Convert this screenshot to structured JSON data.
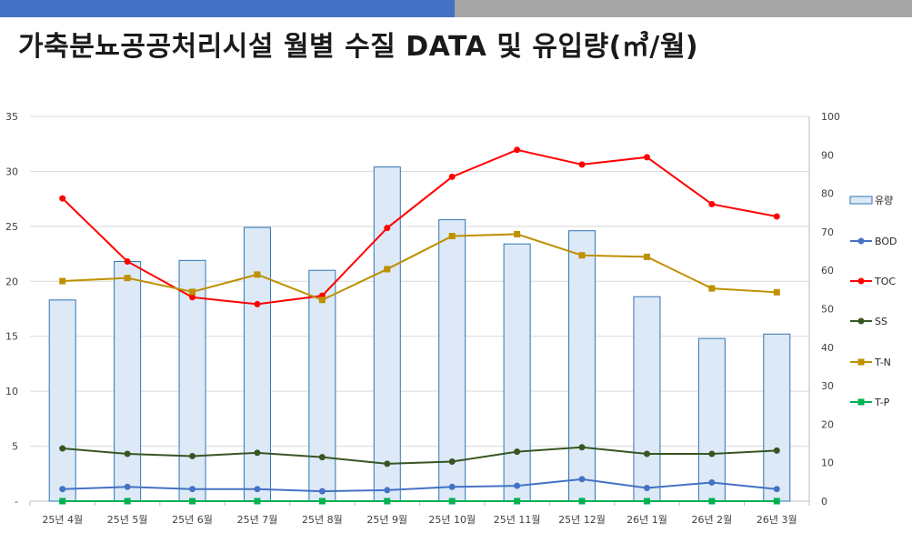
{
  "page": {
    "title": "가축분뇨공공처리시설 월별 수질 DATA 및 유입량(㎥/월)",
    "colors": {
      "bar_blue": "#4472c4",
      "bar_gray": "#a6a6a6"
    }
  },
  "chart_data": {
    "type": "bar",
    "categories": [
      "25년 4월",
      "25년 5월",
      "25년 6월",
      "25년 7월",
      "25년 8월",
      "25년 9월",
      "25년 10월",
      "25년 11월",
      "25년 12월",
      "26년 1월",
      "26년 2월",
      "26년 3월"
    ],
    "y_left": {
      "min": 0,
      "max": 35,
      "ticks": [
        "-",
        "5",
        "10",
        "15",
        "20",
        "25",
        "30",
        "35"
      ],
      "tick_values": [
        0,
        5,
        10,
        15,
        20,
        25,
        30,
        35
      ]
    },
    "y_right": {
      "min": 0,
      "max": 100,
      "ticks": [
        "0",
        "10",
        "20",
        "30",
        "40",
        "50",
        "60",
        "70",
        "80",
        "90",
        "100"
      ],
      "tick_values": [
        0,
        10,
        20,
        30,
        40,
        50,
        60,
        70,
        80,
        90,
        100
      ]
    },
    "grid": true,
    "legend_position": "right",
    "series": [
      {
        "name": "유량",
        "type": "bar",
        "axis": "left",
        "color": "#dde9f6",
        "stroke": "#2e75b6",
        "values": [
          18.3,
          21.8,
          21.9,
          24.9,
          21.0,
          30.4,
          25.6,
          23.4,
          24.6,
          18.6,
          14.8,
          15.2
        ]
      },
      {
        "name": "BOD",
        "type": "line",
        "axis": "left",
        "color": "#4472c4",
        "marker": "circle",
        "values": [
          1.1,
          1.3,
          1.1,
          1.1,
          0.9,
          1.0,
          1.3,
          1.4,
          2.0,
          1.2,
          1.7,
          1.1
        ]
      },
      {
        "name": "TOC",
        "type": "line",
        "axis": "right",
        "color": "#ff0000",
        "marker": "circle",
        "values": [
          78.7,
          62.3,
          53.0,
          51.2,
          53.4,
          71.0,
          84.3,
          91.3,
          87.5,
          89.4,
          77.2,
          74.0
        ]
      },
      {
        "name": "SS",
        "type": "line",
        "axis": "left",
        "color": "#375623",
        "marker": "circle",
        "values": [
          4.8,
          4.3,
          4.1,
          4.4,
          4.0,
          3.4,
          3.6,
          4.5,
          4.9,
          4.3,
          4.3,
          4.6
        ]
      },
      {
        "name": "T-N",
        "type": "line",
        "axis": "right",
        "color": "#bf9000",
        "marker": "square",
        "values": [
          57.2,
          58.0,
          54.4,
          58.9,
          52.3,
          60.3,
          68.9,
          69.4,
          63.9,
          63.5,
          55.3,
          54.3
        ]
      },
      {
        "name": "T-P",
        "type": "line",
        "axis": "left",
        "color": "#00b050",
        "marker": "square",
        "values": [
          0.0,
          0.0,
          0.0,
          0.0,
          0.0,
          0.0,
          0.0,
          0.0,
          0.0,
          0.0,
          0.0,
          0.0
        ]
      }
    ]
  }
}
